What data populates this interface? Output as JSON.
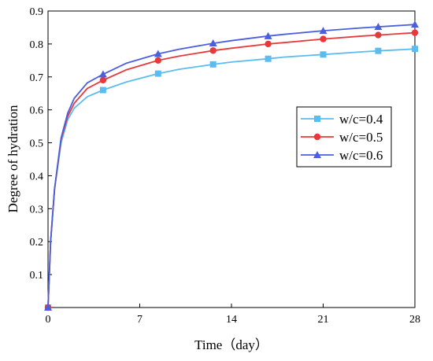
{
  "chart_data": {
    "type": "line",
    "title": "",
    "xlabel": "Time（day）",
    "ylabel": "Degree of hydration",
    "xlim": [
      0,
      28
    ],
    "ylim": [
      0,
      0.9
    ],
    "xticks": [
      0,
      7,
      14,
      21,
      28
    ],
    "yticks": [
      0.1,
      0.2,
      0.3,
      0.4,
      0.5,
      0.6,
      0.7,
      0.8,
      0.9
    ],
    "xtick_labels": [
      "0",
      "7",
      "14",
      "21",
      "28"
    ],
    "ytick_labels": [
      "0.1",
      "0.2",
      "0.3",
      "0.4",
      "0.5",
      "0.6",
      "0.7",
      "0.8",
      "0.9"
    ],
    "grid": false,
    "legend_position": "right-middle",
    "series": [
      {
        "name": "w/c=0.4",
        "color": "#5bbcf0",
        "marker": "square",
        "curve": {
          "x": [
            0,
            0.2,
            0.5,
            1,
            1.5,
            2,
            3,
            4.2,
            6,
            8.4,
            10,
            12.6,
            14,
            16.8,
            18,
            21,
            24,
            25.2,
            28
          ],
          "y": [
            0,
            0.2,
            0.36,
            0.5,
            0.57,
            0.605,
            0.64,
            0.66,
            0.685,
            0.71,
            0.723,
            0.738,
            0.745,
            0.755,
            0.76,
            0.768,
            0.776,
            0.779,
            0.785
          ]
        },
        "markers": {
          "x": [
            0,
            4.2,
            8.4,
            12.6,
            16.8,
            21,
            25.2,
            28
          ],
          "y": [
            0,
            0.66,
            0.71,
            0.738,
            0.755,
            0.768,
            0.779,
            0.785
          ]
        }
      },
      {
        "name": "w/c=0.5",
        "color": "#e8393a",
        "marker": "circle",
        "curve": {
          "x": [
            0,
            0.2,
            0.5,
            1,
            1.5,
            2,
            3,
            4.2,
            6,
            8.4,
            10,
            12.6,
            14,
            16.8,
            18,
            21,
            24,
            25.2,
            28
          ],
          "y": [
            0,
            0.2,
            0.36,
            0.51,
            0.58,
            0.62,
            0.665,
            0.69,
            0.722,
            0.75,
            0.763,
            0.78,
            0.787,
            0.8,
            0.804,
            0.815,
            0.824,
            0.827,
            0.834
          ]
        },
        "markers": {
          "x": [
            0,
            4.2,
            8.4,
            12.6,
            16.8,
            21,
            25.2,
            28
          ],
          "y": [
            0,
            0.69,
            0.75,
            0.78,
            0.8,
            0.815,
            0.827,
            0.834
          ]
        }
      },
      {
        "name": "w/c=0.6",
        "color": "#4a5fe0",
        "marker": "triangle",
        "curve": {
          "x": [
            0,
            0.2,
            0.5,
            1,
            1.5,
            2,
            3,
            4.2,
            6,
            8.4,
            10,
            12.6,
            14,
            16.8,
            18,
            21,
            24,
            25.2,
            28
          ],
          "y": [
            0,
            0.2,
            0.36,
            0.515,
            0.59,
            0.635,
            0.682,
            0.708,
            0.742,
            0.77,
            0.784,
            0.802,
            0.81,
            0.824,
            0.829,
            0.84,
            0.849,
            0.852,
            0.859
          ]
        },
        "markers": {
          "x": [
            0,
            4.2,
            8.4,
            12.6,
            16.8,
            21,
            25.2,
            28
          ],
          "y": [
            0,
            0.708,
            0.77,
            0.802,
            0.824,
            0.84,
            0.852,
            0.859
          ]
        }
      }
    ]
  }
}
